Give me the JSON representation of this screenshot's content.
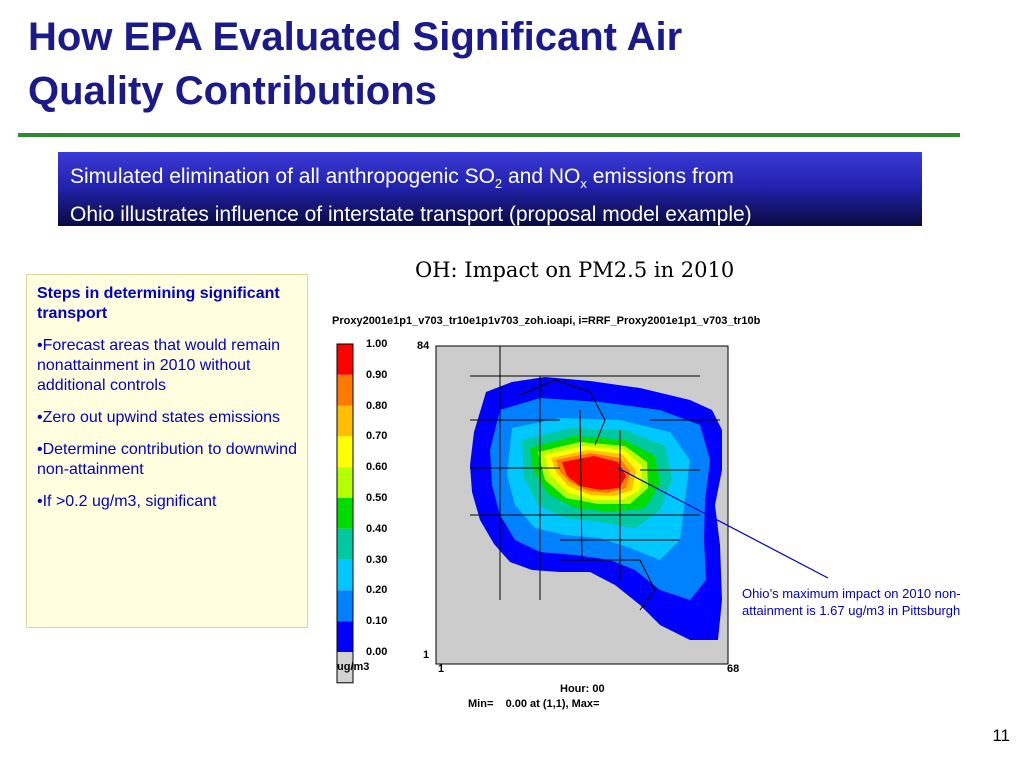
{
  "title": {
    "line1": "How EPA Evaluated Significant Air",
    "line2": "Quality Contributions"
  },
  "banner": {
    "part1": "Simulated elimination of all anthropogenic SO",
    "so_sub": "2",
    "part2": " and NO",
    "no_sub": "x",
    "part3": " emissions from",
    "line2": "Ohio illustrates influence of interstate transport (proposal model example)"
  },
  "steps": {
    "heading": "Steps in determining significant transport",
    "items": [
      "•Forecast areas that would remain nonattainment in 2010 without additional controls",
      "•Zero out upwind states emissions",
      "•Determine contribution to downwind non-attainment",
      "•If >0.2 ug/m3, significant"
    ]
  },
  "figure": {
    "title": "OH: Impact on PM2.5 in 2010",
    "filename": "Proxy2001e1p1_v703_tr10e1p1v703_zoh.ioapi, i=RRF_Proxy2001e1p1_v703_tr10b",
    "legend_labels": [
      "1.00",
      "0.90",
      "0.80",
      "0.70",
      "0.60",
      "0.50",
      "0.40",
      "0.30",
      "0.20",
      "0.10",
      "0.00"
    ],
    "legend_colors": [
      "#ff0000",
      "#ff7800",
      "#ffbe00",
      "#ffff00",
      "#b4ff00",
      "#00dc00",
      "#00c8a0",
      "#00c8ff",
      "#0082ff",
      "#0000ff",
      "#d2d2d2"
    ],
    "unit": "ug/m3",
    "y_top": "84",
    "y_bottom": "1",
    "x_left": "1",
    "x_right": "68",
    "hour": "Hour: 00",
    "stats": "Min=    0.00 at (1,1), Max="
  },
  "callout": "Ohio’s maximum impact on 2010 non-attainment is 1.67 ug/m3 in Pittsburgh",
  "page_number": "11",
  "colors": {
    "title": "#1a1a8c",
    "rule": "#2e8b2e",
    "banner_top": "#3a3ad6",
    "banner_bottom": "#0a0a40",
    "steps_bg": "#ffffe0",
    "steps_text": "#0000c8"
  }
}
